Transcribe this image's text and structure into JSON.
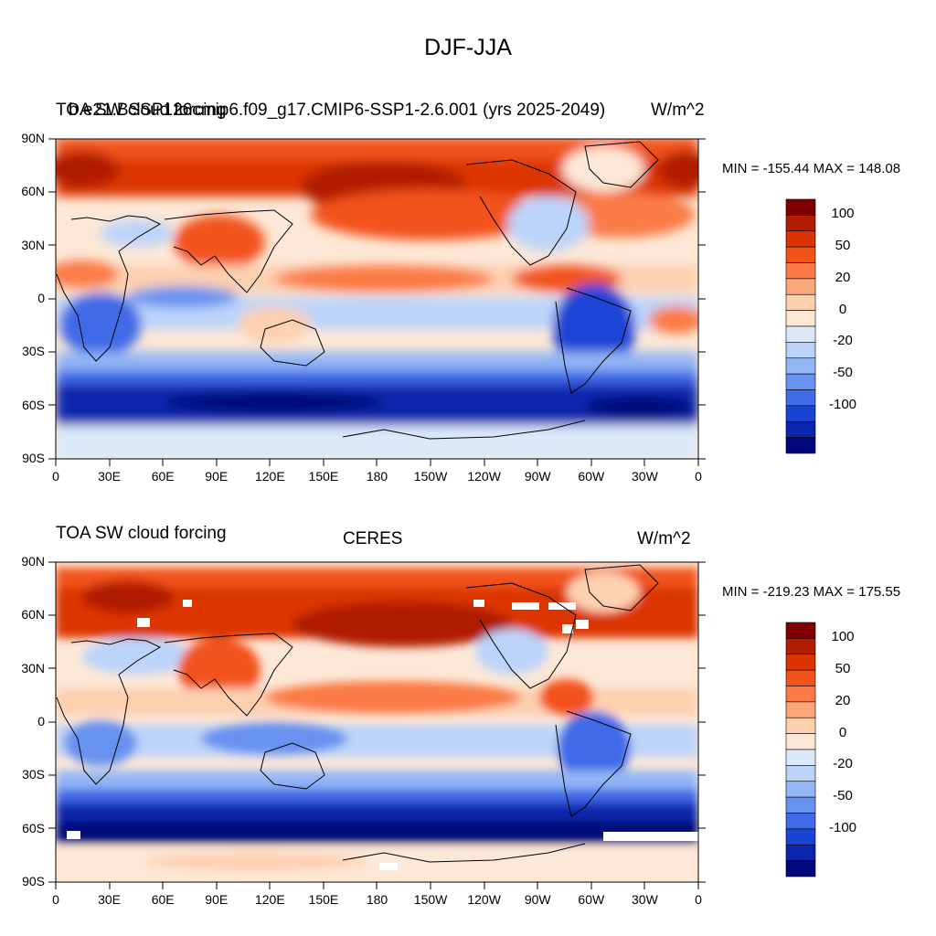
{
  "figure": {
    "main_title": "DJF-JJA",
    "colorbar_labels": [
      "100",
      "50",
      "20",
      "0",
      "-20",
      "-50",
      "-100"
    ],
    "colorbar_colors": [
      "#7f0000",
      "#b01d00",
      "#dc3400",
      "#f2531a",
      "#fb7a45",
      "#fca77a",
      "#fdd0b0",
      "#fde8d7",
      "#dbe9fb",
      "#bcd4fa",
      "#93b6f5",
      "#6892ef",
      "#3f6ae8",
      "#1a44d6",
      "#0b25ad",
      "#00077a"
    ],
    "lat_labels": [
      "90N",
      "60N",
      "30N",
      "0",
      "30S",
      "60S",
      "90S"
    ],
    "lon_labels": [
      "0",
      "30E",
      "60E",
      "90E",
      "120E",
      "150E",
      "180",
      "150W",
      "120W",
      "90W",
      "60W",
      "30W",
      "0"
    ]
  },
  "panels": [
    {
      "title_left": "TOA SW cloud forcing",
      "title_center": "b.e21.BSSP126cmip6.f09_g17.CMIP6-SSP1-2.6.001 (yrs 2025-2049)",
      "title_right": "W/m^2",
      "minmax": "MIN = -155.44 MAX = 148.08"
    },
    {
      "title_left": "TOA SW cloud forcing",
      "title_center": "CERES",
      "title_right": "W/m^2",
      "minmax": "MIN = -219.23 MAX = 175.55"
    }
  ]
}
